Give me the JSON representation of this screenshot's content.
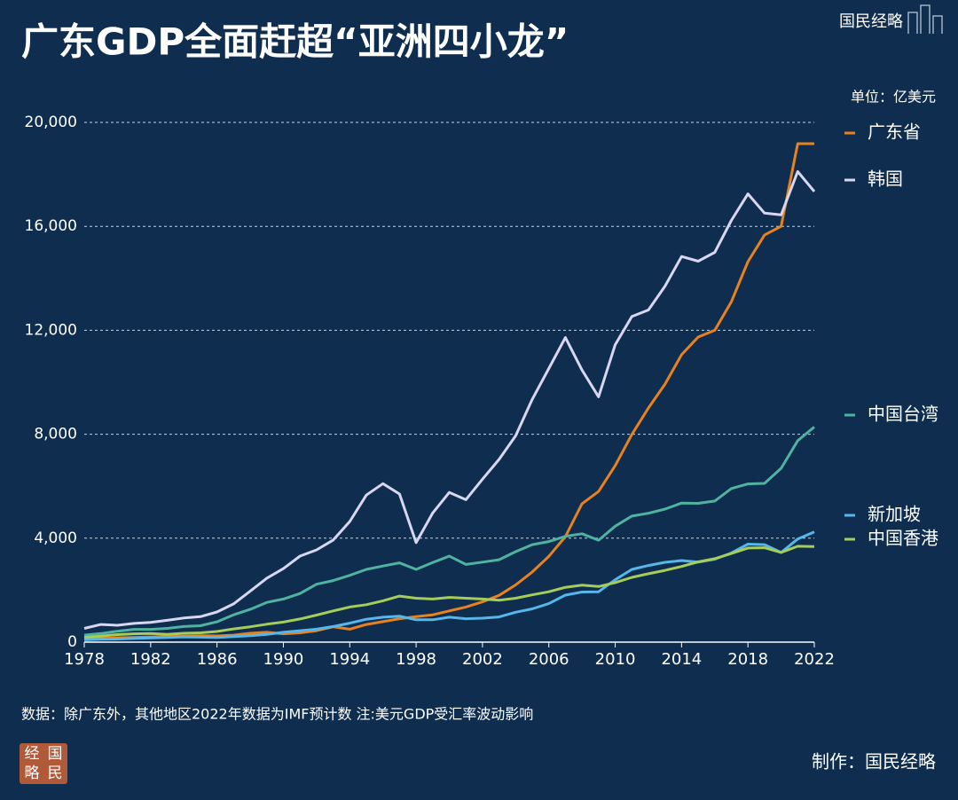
{
  "brand": "国民经略",
  "badge": [
    "经",
    "国",
    "略",
    "民"
  ],
  "credit": "制作：国民经略",
  "chart_data": {
    "type": "line",
    "title": "广东GDP全面赶超“亚洲四小龙”",
    "unit": "单位：亿美元",
    "note": "数据：除广东外，其他地区2022年数据为IMF预计数 注:美元GDP受汇率波动影响",
    "x": [
      1978,
      1979,
      1980,
      1981,
      1982,
      1983,
      1984,
      1985,
      1986,
      1987,
      1988,
      1989,
      1990,
      1991,
      1992,
      1993,
      1994,
      1995,
      1996,
      1997,
      1998,
      1999,
      2000,
      2001,
      2002,
      2003,
      2004,
      2005,
      2006,
      2007,
      2008,
      2009,
      2010,
      2011,
      2012,
      2013,
      2014,
      2015,
      2016,
      2017,
      2018,
      2019,
      2020,
      2021,
      2022
    ],
    "xlim": [
      1978,
      2022
    ],
    "xticks": [
      1978,
      1982,
      1986,
      1990,
      1994,
      1998,
      2002,
      2006,
      2010,
      2014,
      2018,
      2022
    ],
    "ylim": [
      0,
      20000
    ],
    "yticks": [
      0,
      {
        "value": 4000,
        "label": "4,000"
      },
      {
        "value": 8000,
        "label": "8,000"
      },
      {
        "value": 12000,
        "label": "12,000"
      },
      {
        "value": 16000,
        "label": "16,000"
      },
      {
        "value": 20000,
        "label": "20,000"
      }
    ],
    "grid": true,
    "series": [
      {
        "name": "广东省",
        "color": "#e8821e",
        "values": [
          120,
          140,
          170,
          180,
          200,
          210,
          230,
          250,
          240,
          270,
          340,
          380,
          320,
          360,
          440,
          590,
          500,
          680,
          790,
          900,
          980,
          1050,
          1200,
          1350,
          1550,
          1800,
          2200,
          2700,
          3300,
          4060,
          5320,
          5800,
          6790,
          7990,
          9010,
          9930,
          11060,
          11740,
          12000,
          13100,
          14640,
          15670,
          16000,
          19180,
          19180
        ]
      },
      {
        "name": "韩国",
        "color": "#d9d6f0",
        "values": [
          530,
          680,
          650,
          720,
          760,
          840,
          930,
          980,
          1160,
          1470,
          1960,
          2460,
          2830,
          3310,
          3550,
          3930,
          4640,
          5660,
          6100,
          5700,
          3830,
          4970,
          5760,
          5480,
          6270,
          7030,
          7940,
          9340,
          10530,
          11720,
          10470,
          9440,
          11440,
          12530,
          12780,
          13700,
          14840,
          14660,
          15000,
          16230,
          17250,
          16510,
          16440,
          18110,
          17340
        ]
      },
      {
        "name": "中国台湾",
        "color": "#4fb3a0",
        "values": [
          270,
          330,
          420,
          490,
          490,
          530,
          600,
          630,
          780,
          1050,
          1260,
          1530,
          1660,
          1870,
          2230,
          2370,
          2570,
          2800,
          2930,
          3050,
          2800,
          3060,
          3310,
          2990,
          3080,
          3170,
          3480,
          3750,
          3870,
          4070,
          4170,
          3920,
          4460,
          4850,
          4960,
          5120,
          5350,
          5340,
          5430,
          5910,
          6090,
          6110,
          6690,
          7750,
          8280
        ]
      },
      {
        "name": "新加坡",
        "color": "#55b7ea",
        "values": [
          90,
          110,
          120,
          140,
          160,
          180,
          200,
          190,
          180,
          210,
          250,
          300,
          380,
          440,
          500,
          600,
          730,
          880,
          960,
          1000,
          860,
          860,
          960,
          900,
          920,
          970,
          1150,
          1280,
          1480,
          1810,
          1930,
          1940,
          2400,
          2800,
          2950,
          3070,
          3140,
          3080,
          3190,
          3430,
          3770,
          3750,
          3450,
          3970,
          4240
        ]
      },
      {
        "name": "中国香港",
        "color": "#a6cc5a",
        "values": [
          180,
          230,
          290,
          320,
          330,
          300,
          340,
          360,
          410,
          510,
          590,
          690,
          770,
          890,
          1040,
          1200,
          1350,
          1440,
          1590,
          1770,
          1690,
          1660,
          1720,
          1690,
          1660,
          1610,
          1690,
          1820,
          1940,
          2110,
          2190,
          2140,
          2290,
          2490,
          2630,
          2760,
          2910,
          3090,
          3210,
          3410,
          3620,
          3630,
          3450,
          3690,
          3680
        ]
      }
    ]
  }
}
